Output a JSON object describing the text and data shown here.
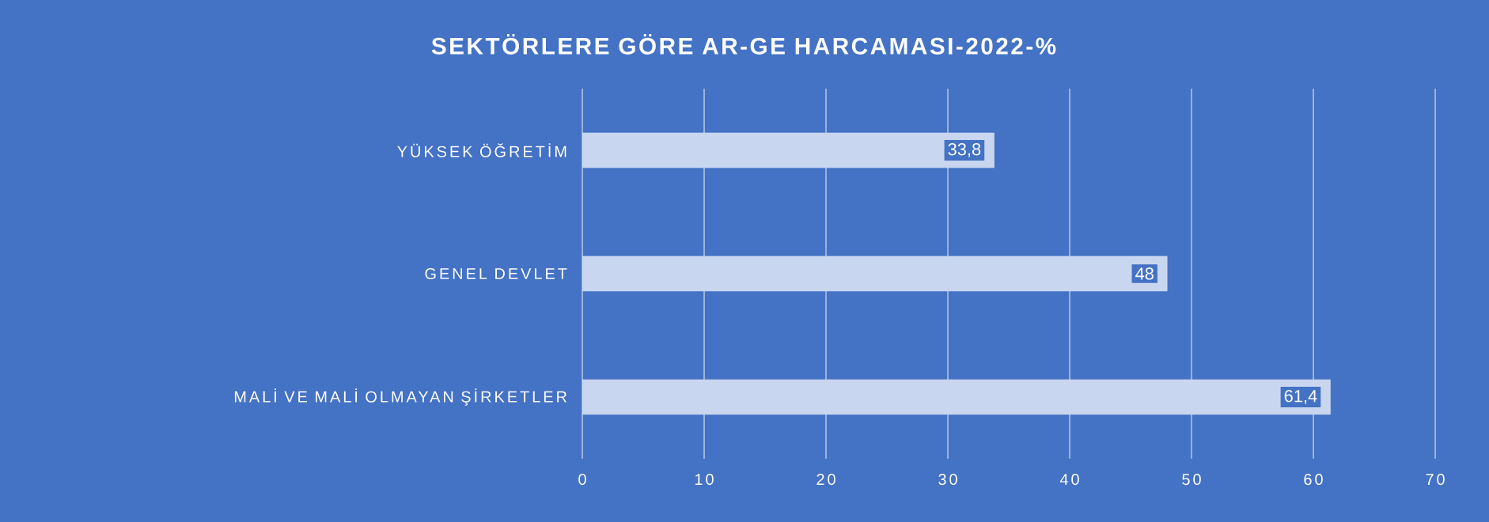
{
  "chart_data": {
    "type": "bar",
    "orientation": "horizontal",
    "title": "SEKTÖRLERE GÖRE AR-GE HARCAMASI-2022-%",
    "categories": [
      "YÜKSEK ÖĞRETİM",
      "GENEL DEVLET",
      "MALİ VE MALİ OLMAYAN ŞİRKETLER"
    ],
    "values": [
      33.8,
      48,
      61.4
    ],
    "value_labels": [
      "33,8",
      "48",
      "61,4"
    ],
    "color": "#c9d6ef",
    "xlim": [
      0,
      70
    ],
    "xticks": [
      0,
      10,
      20,
      30,
      40,
      50,
      60,
      70
    ],
    "grid": "x"
  }
}
